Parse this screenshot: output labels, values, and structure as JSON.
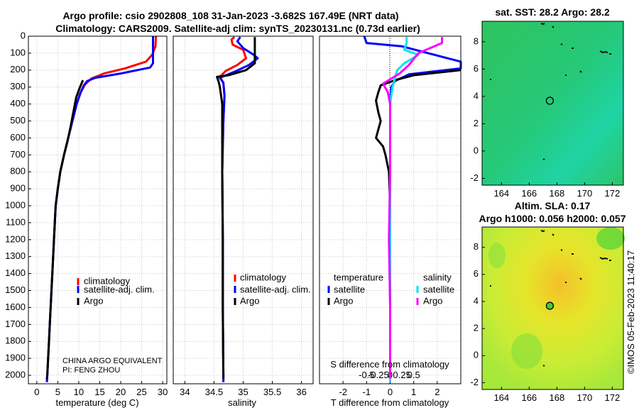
{
  "title_line1": "Argo profile: csio 2902808_108 31-Jan-2023 -3.682S 167.49E (NRT data)",
  "title_line2": "Climatology: CARS2009. Satellite-adj clim: synTS_20230131.nc (0.73d earlier)",
  "side_label": "©IMOS 05-Feb-2023 11:40:17",
  "colors": {
    "climatology": "#ff0000",
    "satellite": "#0000ff",
    "argo": "#000000",
    "sat_salinity": "#00e5ee",
    "argo_salinity": "#ff00ff"
  },
  "chart_data": [
    {
      "id": "temperature",
      "type": "line",
      "xlabel": "temperature (deg C)",
      "xlim": [
        -2,
        31
      ],
      "ylim": [
        2050,
        0
      ],
      "xticks": [
        0,
        5,
        10,
        15,
        20,
        25,
        30
      ],
      "yticks": [
        0,
        100,
        200,
        300,
        400,
        500,
        600,
        700,
        800,
        900,
        1000,
        1100,
        1200,
        1300,
        1400,
        1500,
        1600,
        1700,
        1800,
        1900,
        2000
      ],
      "legend": [
        "climatology",
        "satellite-adj. clim.",
        "Argo"
      ],
      "annotation1": "CHINA ARGO EQUIVALENT",
      "annotation2": "PI: FENG ZHOU",
      "series": [
        {
          "name": "climatology",
          "color": "#ff0000",
          "points": [
            [
              28.4,
              0
            ],
            [
              28.3,
              60
            ],
            [
              27.5,
              110
            ],
            [
              26,
              150
            ],
            [
              21,
              190
            ],
            [
              16,
              220
            ],
            [
              13,
              250
            ],
            [
              11.5,
              285
            ],
            [
              10.5,
              330
            ],
            [
              9.5,
              400
            ],
            [
              8.5,
              500
            ],
            [
              7.5,
              600
            ],
            [
              6.5,
              700
            ],
            [
              5.6,
              800
            ],
            [
              5,
              900
            ],
            [
              4.5,
              1000
            ],
            [
              4.1,
              1200
            ],
            [
              3.7,
              1400
            ],
            [
              3.3,
              1600
            ],
            [
              2.9,
              1800
            ],
            [
              2.5,
              2000
            ],
            [
              2.4,
              2040
            ]
          ]
        },
        {
          "name": "satellite-adj. clim.",
          "color": "#0000ff",
          "points": [
            [
              27.7,
              0
            ],
            [
              27.7,
              100
            ],
            [
              27.7,
              160
            ],
            [
              27,
              185
            ],
            [
              20,
              220
            ],
            [
              14,
              245
            ],
            [
              12,
              265
            ],
            [
              11.2,
              290
            ],
            [
              10.3,
              340
            ],
            [
              9.5,
              400
            ],
            [
              8.5,
              500
            ],
            [
              7.5,
              600
            ],
            [
              6.5,
              700
            ],
            [
              5.6,
              800
            ],
            [
              5,
              900
            ],
            [
              4.5,
              1000
            ],
            [
              4.1,
              1200
            ],
            [
              3.7,
              1400
            ],
            [
              3.3,
              1600
            ],
            [
              2.9,
              1800
            ],
            [
              2.5,
              2000
            ],
            [
              2.4,
              2040
            ]
          ]
        },
        {
          "name": "Argo",
          "color": "#000000",
          "points": [
            [
              11,
              260
            ],
            [
              10.3,
              300
            ],
            [
              9.4,
              360
            ],
            [
              8.7,
              450
            ],
            [
              8,
              540
            ],
            [
              7.3,
              620
            ],
            [
              6.5,
              700
            ],
            [
              5.6,
              800
            ],
            [
              5,
              900
            ],
            [
              4.5,
              1000
            ],
            [
              4.1,
              1200
            ],
            [
              3.7,
              1400
            ],
            [
              3.3,
              1600
            ],
            [
              2.9,
              1800
            ],
            [
              2.5,
              2000
            ],
            [
              2.4,
              2020
            ]
          ]
        }
      ]
    },
    {
      "id": "salinity",
      "type": "line",
      "xlabel": "salinity",
      "xlim": [
        33.8,
        36.2
      ],
      "ylim": [
        2050,
        0
      ],
      "xticks": [
        34,
        34.5,
        35,
        35.5,
        36
      ],
      "legend": [
        "climatology",
        "satellite-adj. clim.",
        "Argo"
      ],
      "series": [
        {
          "name": "climatology",
          "color": "#ff0000",
          "points": [
            [
              34.85,
              5
            ],
            [
              34.8,
              20
            ],
            [
              34.82,
              50
            ],
            [
              35,
              80
            ],
            [
              35.05,
              130
            ],
            [
              34.9,
              170
            ],
            [
              34.7,
              205
            ],
            [
              34.6,
              240
            ],
            [
              34.66,
              275
            ],
            [
              34.68,
              350
            ],
            [
              34.66,
              500
            ],
            [
              34.64,
              800
            ],
            [
              34.65,
              1200
            ],
            [
              34.65,
              1600
            ],
            [
              34.66,
              2000
            ],
            [
              34.66,
              2040
            ]
          ]
        },
        {
          "name": "satellite-adj. clim.",
          "color": "#0000ff",
          "points": [
            [
              34.95,
              5
            ],
            [
              34.9,
              30
            ],
            [
              35,
              70
            ],
            [
              35.18,
              110
            ],
            [
              35.25,
              130
            ],
            [
              35.1,
              170
            ],
            [
              34.85,
              210
            ],
            [
              34.6,
              245
            ],
            [
              34.66,
              275
            ],
            [
              34.68,
              350
            ],
            [
              34.66,
              500
            ],
            [
              34.64,
              800
            ],
            [
              34.65,
              1200
            ],
            [
              34.65,
              1600
            ],
            [
              34.66,
              2000
            ],
            [
              34.66,
              2040
            ]
          ]
        },
        {
          "name": "Argo",
          "color": "#000000",
          "points": [
            [
              35.2,
              5
            ],
            [
              35.2,
              100
            ],
            [
              35.2,
              160
            ],
            [
              35.05,
              200
            ],
            [
              34.75,
              230
            ],
            [
              34.55,
              240
            ],
            [
              34.58,
              270
            ],
            [
              34.6,
              300
            ],
            [
              34.64,
              400
            ],
            [
              34.64,
              600
            ],
            [
              34.64,
              800
            ],
            [
              34.65,
              1200
            ],
            [
              34.65,
              1600
            ],
            [
              34.66,
              2000
            ],
            [
              34.66,
              2020
            ]
          ]
        }
      ]
    },
    {
      "id": "difference",
      "type": "line",
      "xlabel": "T difference from climatology",
      "top_xlabel": "S difference from climatology",
      "xlim": [
        -3,
        3
      ],
      "ylim": [
        2050,
        0
      ],
      "xticks": [
        -2,
        -1,
        0,
        1,
        2
      ],
      "top_xtick_labels": [
        "-0.5",
        "-0.25",
        "0",
        "0.25",
        "0.5"
      ],
      "legend_left_title": "temperature",
      "legend_right_title": "salinity",
      "legend_left": [
        "satellite",
        "Argo"
      ],
      "legend_right": [
        "satellite",
        "Argo"
      ],
      "series": [
        {
          "name": "satellite T",
          "color": "#0000ff",
          "points": [
            [
              -1.1,
              0
            ],
            [
              -1,
              40
            ],
            [
              0.5,
              60
            ],
            [
              3,
              150
            ],
            [
              3,
              190
            ],
            [
              0.8,
              225
            ],
            [
              0.2,
              265
            ],
            [
              0.05,
              300
            ],
            [
              0,
              400
            ],
            [
              0,
              1000
            ],
            [
              0,
              2040
            ]
          ]
        },
        {
          "name": "Argo T",
          "color": "#000000",
          "points": [
            [
              3,
              200
            ],
            [
              1,
              230
            ],
            [
              0.2,
              260
            ],
            [
              -0.4,
              290
            ],
            [
              -0.5,
              330
            ],
            [
              -0.6,
              380
            ],
            [
              -0.5,
              450
            ],
            [
              -0.4,
              500
            ],
            [
              -0.6,
              600
            ],
            [
              -0.3,
              650
            ],
            [
              -0.2,
              700
            ],
            [
              -0.05,
              800
            ],
            [
              0,
              1000
            ],
            [
              0,
              2020
            ]
          ]
        },
        {
          "name": "satellite S",
          "color": "#00e5ee",
          "points": [
            [
              0.7,
              5
            ],
            [
              0.7,
              40
            ],
            [
              0.6,
              80
            ],
            [
              1.2,
              110
            ],
            [
              0.6,
              160
            ],
            [
              0.3,
              200
            ],
            [
              0.2,
              250
            ],
            [
              0.1,
              300
            ],
            [
              0,
              400
            ],
            [
              0,
              2040
            ]
          ]
        },
        {
          "name": "Argo S",
          "color": "#ff00ff",
          "points": [
            [
              2.2,
              5
            ],
            [
              2.2,
              40
            ],
            [
              1.2,
              100
            ],
            [
              0.8,
              170
            ],
            [
              0.4,
              220
            ],
            [
              -0.3,
              280
            ],
            [
              -0.1,
              330
            ],
            [
              0,
              400
            ],
            [
              0,
              800
            ],
            [
              -0.05,
              1200
            ],
            [
              0,
              1600
            ],
            [
              0,
              2020
            ]
          ]
        }
      ]
    }
  ],
  "maps": [
    {
      "id": "sst-map",
      "title": "sat. SST: 28.2 Argo: 28.2",
      "xticks": [
        164,
        166,
        168,
        170,
        172
      ],
      "yticks": [
        8,
        6,
        4,
        2,
        0,
        -2
      ],
      "xlim": [
        162.6,
        172.8
      ],
      "ylim": [
        -2.5,
        9.5
      ],
      "argo_location": [
        167.49,
        3.68
      ]
    },
    {
      "id": "sla-map",
      "title1": "Altim. SLA: 0.17",
      "title2": "Argo h1000: 0.056 h2000: 0.057",
      "xticks": [
        164,
        166,
        168,
        170,
        172
      ],
      "yticks": [
        8,
        6,
        4,
        2,
        0,
        -2
      ],
      "xlim": [
        162.6,
        172.8
      ],
      "ylim": [
        -2.5,
        9.5
      ],
      "argo_location": [
        167.49,
        3.68
      ]
    }
  ]
}
